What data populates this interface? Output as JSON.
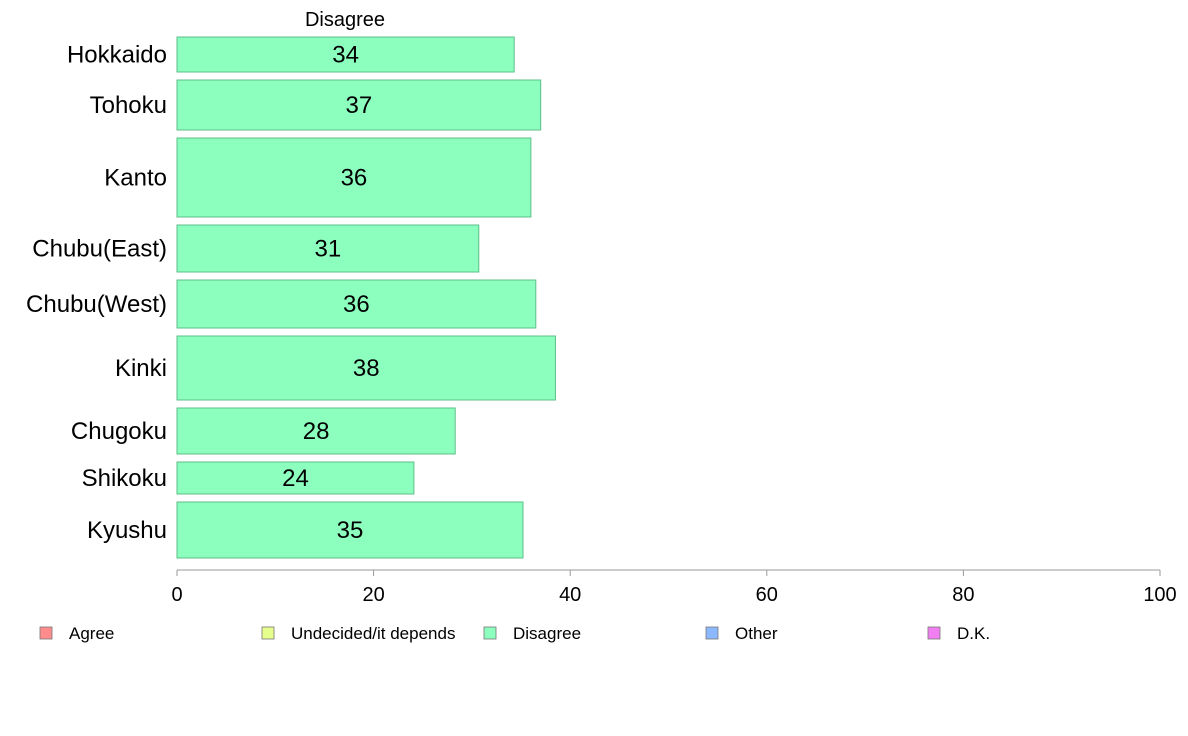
{
  "chart_data": {
    "type": "bar",
    "orientation": "horizontal",
    "title": "Disagree",
    "categories": [
      "Hokkaido",
      "Tohoku",
      "Kanto",
      "Chubu(East)",
      "Chubu(West)",
      "Kinki",
      "Chugoku",
      "Shikoku",
      "Kyushu"
    ],
    "values": [
      34.3,
      37.0,
      36.0,
      30.7,
      36.5,
      38.5,
      28.3,
      24.1,
      35.2
    ],
    "value_labels": [
      "34",
      "37",
      "36",
      "31",
      "36",
      "38",
      "28",
      "24",
      "35"
    ],
    "series_color": "#8cffbf",
    "bar_edge_color": "#5cbf8a",
    "xlim": [
      0,
      100
    ],
    "xticks": [
      0,
      20,
      40,
      60,
      80,
      100
    ],
    "xtick_labels": [
      "0",
      "20",
      "40",
      "60",
      "80",
      "100"
    ],
    "xlabel": "",
    "ylabel": "",
    "grid": false,
    "legend_position": "bottom",
    "legend": [
      {
        "label": "Agree",
        "color": "#ff8c8c"
      },
      {
        "label": "Undecided/it depends",
        "color": "#e6ff8c"
      },
      {
        "label": "Disagree",
        "color": "#8cffbf"
      },
      {
        "label": "Other",
        "color": "#8cb8ff"
      },
      {
        "label": "D.K.",
        "color": "#f27ff2"
      }
    ]
  }
}
